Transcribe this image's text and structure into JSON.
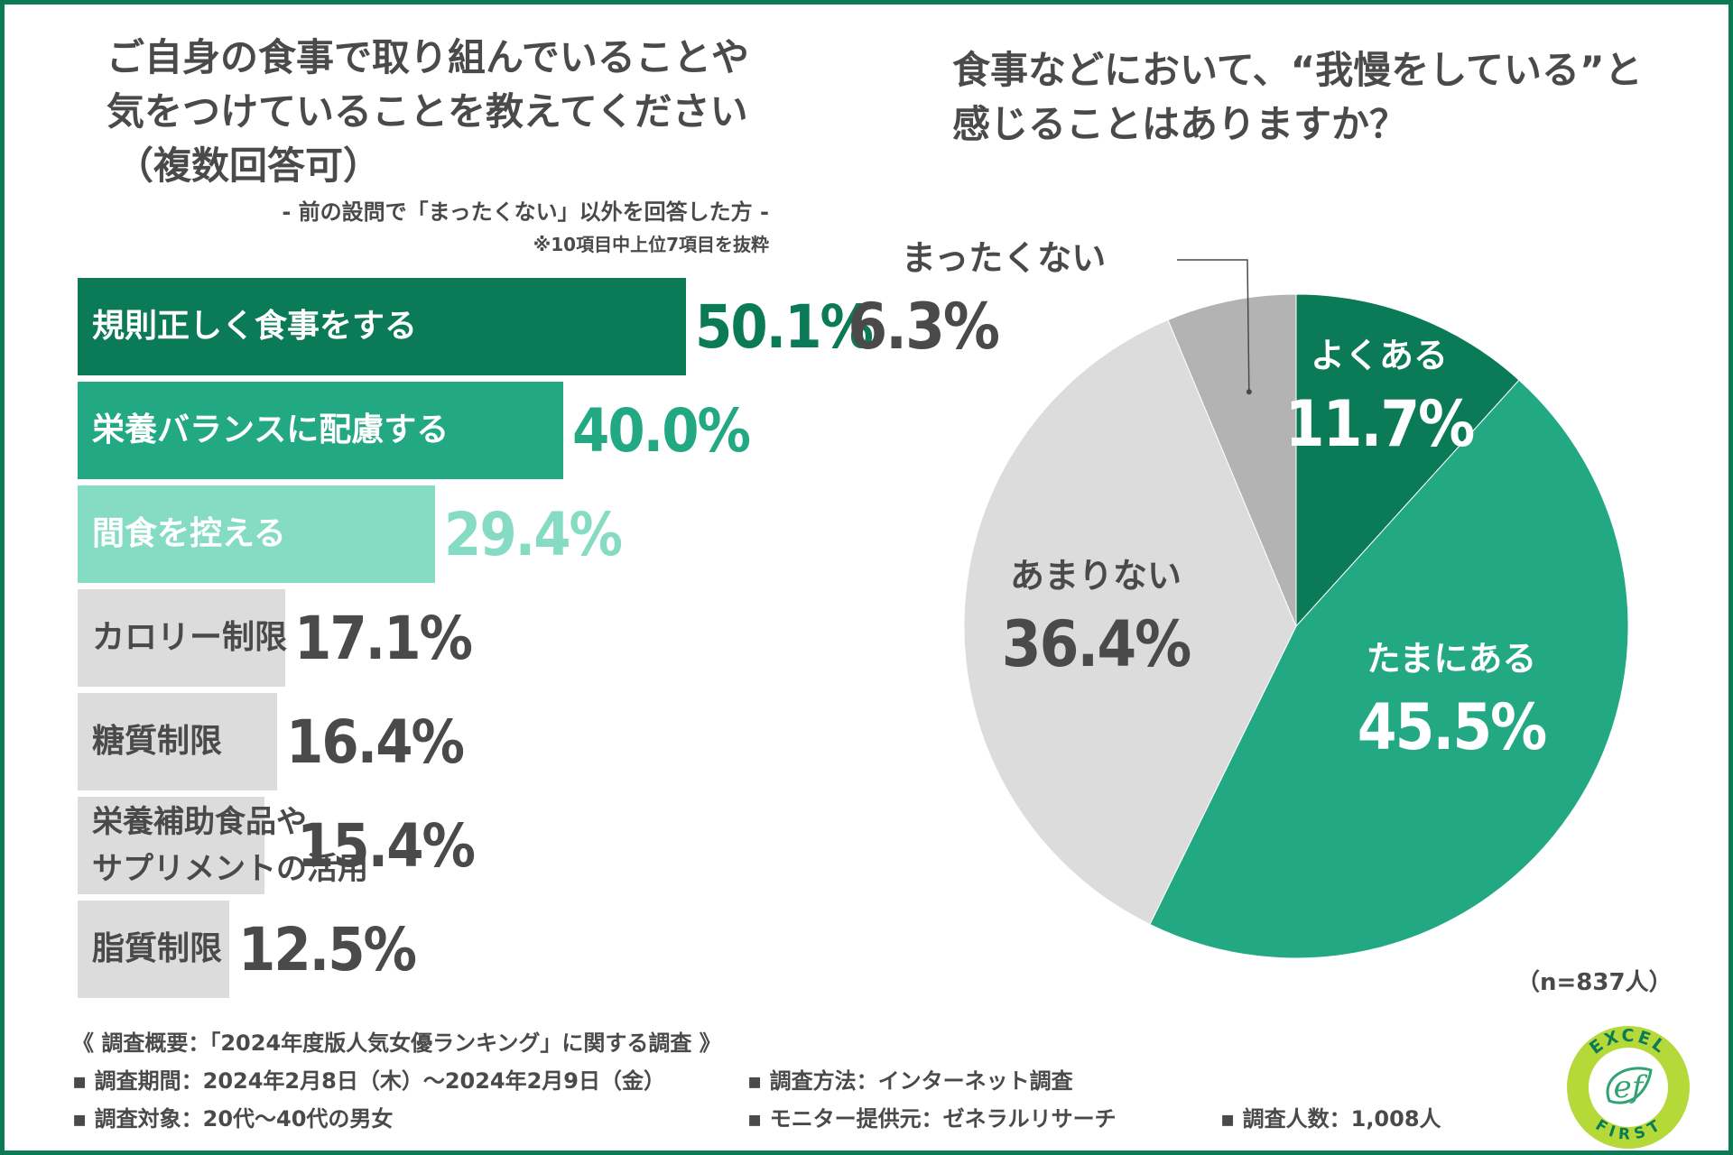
{
  "left": {
    "title_lines": [
      "ご自身の食事で取り組んでいることや",
      "気をつけていることを教えてください",
      "（複数回答可）"
    ],
    "subtitle": "- 前の設問で「まったくない」以外を回答した方 -",
    "note": "※10項目中上位7項目を抜粋"
  },
  "right": {
    "title_lines": [
      "食事などにおいて、“我慢をしている”と",
      "感じることはありますか？"
    ],
    "n_note": "（n=837人）"
  },
  "colors": {
    "dark_green": "#0b7a57",
    "mid_green": "#22a882",
    "light_green": "#86dcc2",
    "light_gray": "#dcdcdc",
    "mid_gray": "#b3b3b3",
    "text_gray": "#4a4a4a",
    "frame": "#0b7a57"
  },
  "chart_data": [
    {
      "type": "bar",
      "orientation": "horizontal",
      "title": "ご自身の食事で取り組んでいることや気をつけていることを教えてください（複数回答可）",
      "unit": "%",
      "items": [
        {
          "label": "規則正しく食事をする",
          "value": 50.1,
          "display": "50.1%",
          "bar_color": "#0b7a57",
          "label_color": "#ffffff",
          "value_color": "#0b7a57"
        },
        {
          "label": "栄養バランスに配慮する",
          "value": 40.0,
          "display": "40.0%",
          "bar_color": "#22a882",
          "label_color": "#ffffff",
          "value_color": "#22a882"
        },
        {
          "label": "間食を控える",
          "value": 29.4,
          "display": "29.4%",
          "bar_color": "#86dcc2",
          "label_color": "#ffffff",
          "value_color": "#86dcc2"
        },
        {
          "label": "カロリー制限",
          "value": 17.1,
          "display": "17.1%",
          "bar_color": "#dcdcdc",
          "label_color": "#4a4a4a",
          "value_color": "#4a4a4a"
        },
        {
          "label": "糖質制限",
          "value": 16.4,
          "display": "16.4%",
          "bar_color": "#dcdcdc",
          "label_color": "#4a4a4a",
          "value_color": "#4a4a4a"
        },
        {
          "label_lines": [
            "栄養補助食品や",
            "サプリメントの活用"
          ],
          "value": 15.4,
          "display": "15.4%",
          "bar_color": "#dcdcdc",
          "label_color": "#4a4a4a",
          "value_color": "#4a4a4a"
        },
        {
          "label": "脂質制限",
          "value": 12.5,
          "display": "12.5%",
          "bar_color": "#dcdcdc",
          "label_color": "#4a4a4a",
          "value_color": "#4a4a4a"
        }
      ]
    },
    {
      "type": "pie",
      "title": "食事などにおいて、“我慢をしている”と感じることはありますか？",
      "unit": "%",
      "slices": [
        {
          "label": "よくある",
          "value": 11.7,
          "display": "11.7%",
          "color": "#0b7a57",
          "text_color": "#ffffff"
        },
        {
          "label": "たまにある",
          "value": 45.5,
          "display": "45.5%",
          "color": "#22a882",
          "text_color": "#ffffff"
        },
        {
          "label": "あまりない",
          "value": 36.4,
          "display": "36.4%",
          "color": "#dcdcdc",
          "text_color": "#4a4a4a"
        },
        {
          "label": "まったくない",
          "value": 6.3,
          "display": "6.3%",
          "color": "#b3b3b3",
          "text_color": "#4a4a4a"
        }
      ]
    }
  ],
  "survey": {
    "heading": "《 調査概要：「2024年度版人気女優ランキング」に関する調査 》",
    "period": "▪ 調査期間：2024年2月8日（木）〜2024年2月9日（金）",
    "method": "▪ 調査方法：インターネット調査",
    "target": "▪ 調査対象：20代〜40代の男女",
    "provider": "▪ モニター提供元：ゼネラルリサーチ",
    "count": "▪ 調査人数：1,008人"
  },
  "logo": {
    "top": "EXCEL",
    "bottom": "FIRST",
    "mark": "ef"
  }
}
